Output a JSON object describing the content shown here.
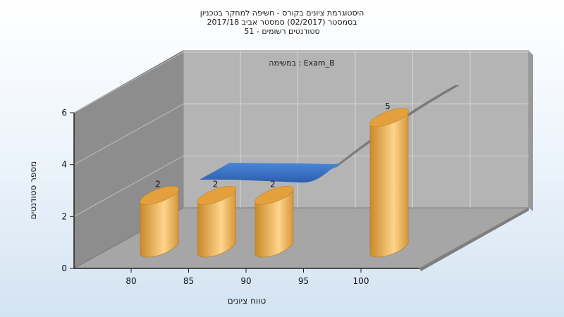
{
  "chart_data": {
    "type": "bar",
    "title_lines": [
      "היסטוגרמת ציונים בקורס - חשיפה למחקר בטכניון",
      "בסמסטר  (02/2017)  סמסטר אביב 2017/18",
      "סטודנטים רשומים - 51"
    ],
    "subtitle": "במשימה : Exam_B",
    "xlabel": "טווח ציונים",
    "ylabel": "מספר סטודנטים",
    "x_ticks": [
      "80",
      "85",
      "90",
      "95",
      "100"
    ],
    "y_ticks": [
      "0",
      "2",
      "4",
      "6"
    ],
    "ylim": [
      0,
      6
    ],
    "grid": true,
    "bars": [
      {
        "x": 80,
        "value": 2,
        "label": "2"
      },
      {
        "x": 85,
        "value": 2,
        "label": "2"
      },
      {
        "x": 90,
        "value": 2,
        "label": "2"
      },
      {
        "x": 100,
        "value": 5,
        "label": "5"
      }
    ],
    "colors": {
      "bar_dark": "#c98a2a",
      "bar_light": "#f7cd80",
      "bar_top": "#e3a03c",
      "curve": "#3a74c8",
      "back_wall": "#b4b4b4",
      "side_wall": "#8d8d8d",
      "floor": "#a6a6a6"
    }
  }
}
